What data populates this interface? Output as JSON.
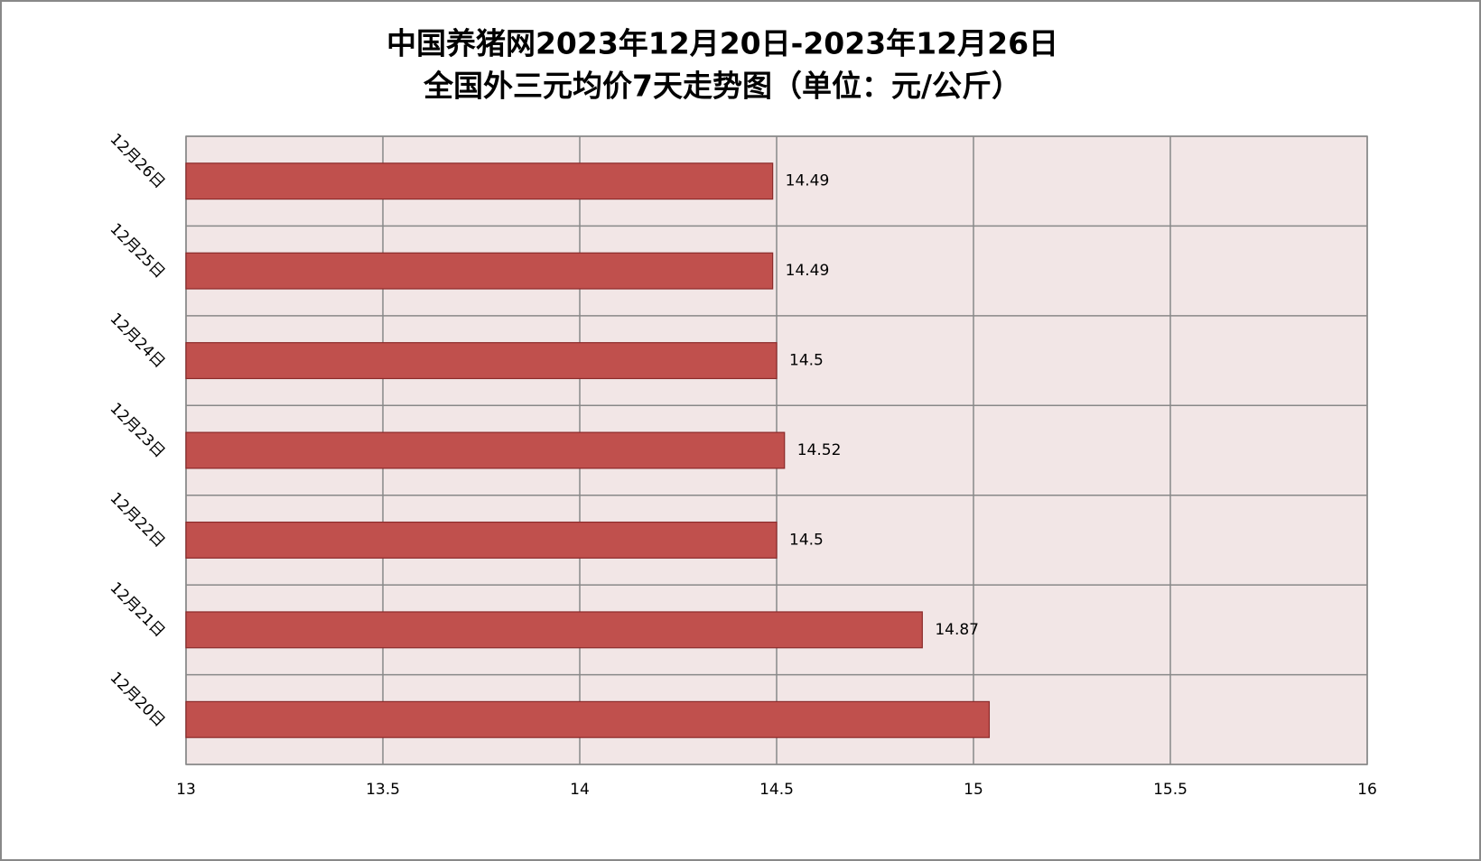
{
  "chart_data": {
    "type": "bar",
    "orientation": "horizontal",
    "title": [
      "中国养猪网2023年12月20日-2023年12月26日",
      "全国外三元均价7天走势图（单位：元/公斤）"
    ],
    "categories": [
      "12月20日",
      "12月21日",
      "12月22日",
      "12月23日",
      "12月24日",
      "12月25日",
      "12月26日"
    ],
    "values": [
      15.04,
      14.87,
      14.5,
      14.52,
      14.5,
      14.49,
      14.49
    ],
    "value_labels": [
      null,
      "14.87",
      "14.5",
      "14.52",
      "14.5",
      "14.49",
      "14.49"
    ],
    "color": "#c0504d",
    "xlim": [
      13,
      16
    ],
    "xticks": [
      13,
      13.5,
      14,
      14.5,
      15,
      15.5,
      16
    ],
    "grid": true
  }
}
